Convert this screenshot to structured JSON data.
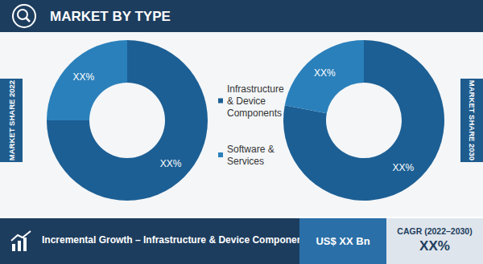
{
  "header": {
    "title": "MARKET BY TYPE"
  },
  "chart_data": [
    {
      "type": "pie",
      "title": "MARKET SHARE 2022",
      "categories": [
        "Infrastructure & Device Components",
        "Software & Services"
      ],
      "values": [
        75,
        25
      ],
      "value_labels": [
        "XX%",
        "XX%"
      ],
      "colors": [
        "#1c5f94",
        "#2a80bb"
      ],
      "data_labels": true
    },
    {
      "type": "pie",
      "title": "MARKET SHARE 2030",
      "categories": [
        "Infrastructure & Device Components",
        "Software & Services"
      ],
      "values": [
        78,
        22
      ],
      "value_labels": [
        "XX%",
        "XX%"
      ],
      "colors": [
        "#1c5f94",
        "#2a80bb"
      ],
      "data_labels": true
    }
  ],
  "footer": {
    "text": "Incremental Growth – Infrastructure & Device Components",
    "value": "US$ XX Bn",
    "cagr_label": "CAGR (2022–2030)",
    "cagr_value": "XX%"
  }
}
